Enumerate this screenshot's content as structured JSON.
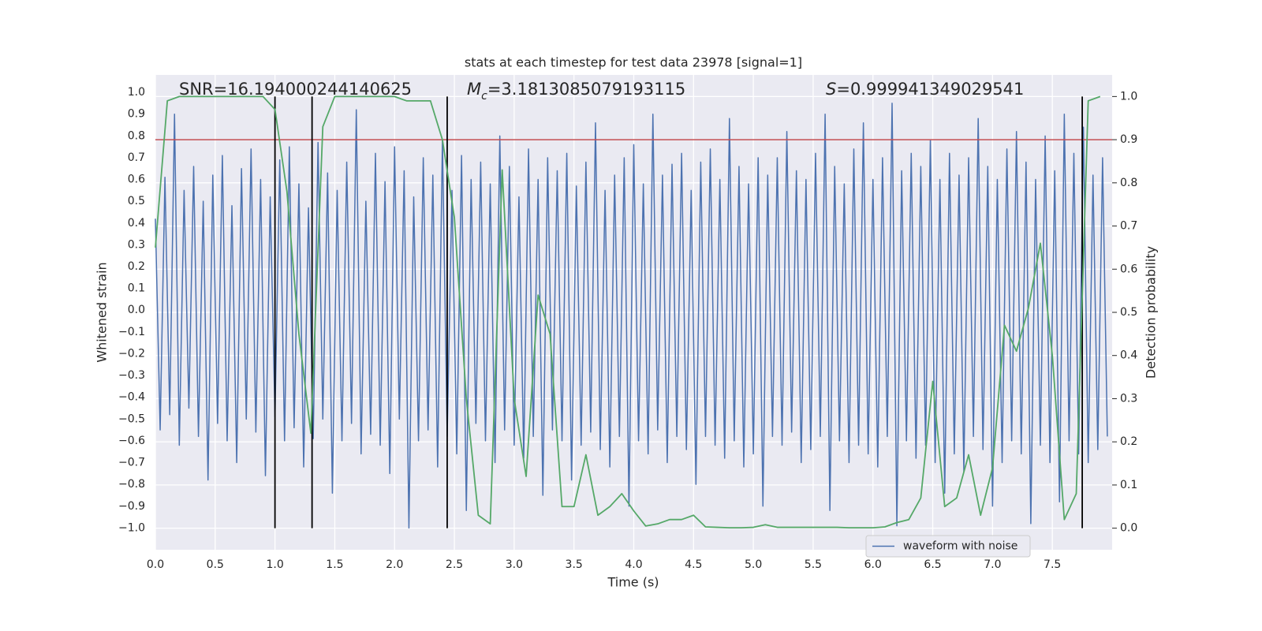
{
  "chart_data": {
    "type": "line",
    "title": "stats at each timestep for test data 23978 [signal=1]",
    "xlabel": "Time (s)",
    "ylabel": "Whitened strain",
    "y2label": "Detection probability",
    "annotations": [
      {
        "text": "SNR=16.194000244140625"
      },
      {
        "symbol": "M",
        "subscript": "c",
        "text": "=3.1813085079193115"
      },
      {
        "symbol": "S",
        "text": "=0.999941349029541"
      }
    ],
    "xlim": [
      0,
      8
    ],
    "ylim": [
      -1.1,
      1.08
    ],
    "y2lim": [
      -0.05,
      1.05
    ],
    "xticks": [
      {
        "value": 0,
        "label": "0.0"
      },
      0.5,
      {
        "value": 1,
        "label": "1.0"
      },
      1.5,
      {
        "value": 2,
        "label": "2.0"
      },
      2.5,
      {
        "value": 3,
        "label": "3.0"
      },
      3.5,
      {
        "value": 4,
        "label": "4.0"
      },
      4.5,
      {
        "value": 5,
        "label": "5.0"
      },
      5.5,
      {
        "value": 6,
        "label": "6.0"
      },
      6.5,
      {
        "value": 7,
        "label": "7.0"
      },
      7.5
    ],
    "yticks": [
      {
        "value": -1,
        "label": "−1.0"
      },
      {
        "value": -0.9,
        "label": "−0.9"
      },
      {
        "value": -0.8,
        "label": "−0.8"
      },
      {
        "value": -0.7,
        "label": "−0.7"
      },
      {
        "value": -0.6,
        "label": "−0.6"
      },
      {
        "value": -0.5,
        "label": "−0.5"
      },
      {
        "value": -0.4,
        "label": "−0.4"
      },
      {
        "value": -0.3,
        "label": "−0.3"
      },
      {
        "value": -0.2,
        "label": "−0.2"
      },
      {
        "value": -0.1,
        "label": "−0.1"
      },
      {
        "value": 0,
        "label": "0.0"
      },
      0.1,
      0.2,
      0.3,
      0.4,
      0.5,
      0.6,
      0.7,
      0.8,
      0.9,
      {
        "value": 1,
        "label": "1.0"
      }
    ],
    "y2ticks": [
      {
        "value": 0,
        "label": "0.0"
      },
      0.1,
      0.2,
      0.3,
      0.4,
      0.5,
      0.6,
      0.7,
      0.8,
      0.9,
      {
        "value": 1,
        "label": "1.0"
      }
    ],
    "grid": true,
    "legend_loc": "lower right",
    "threshold": {
      "value": 0.9,
      "axis": "y2",
      "color": "#c44e52"
    },
    "vlines": {
      "values": [
        1.0,
        1.31,
        2.44,
        7.75
      ],
      "color": "#000000"
    },
    "series": [
      {
        "name": "waveform with noise",
        "color": "#4c72b0",
        "x": [
          0,
          0.04,
          0.08,
          0.12,
          0.16,
          0.2,
          0.24,
          0.28,
          0.32,
          0.36,
          0.4,
          0.44,
          0.48,
          0.52,
          0.56,
          0.6,
          0.64,
          0.68,
          0.72,
          0.76,
          0.8,
          0.84,
          0.88,
          0.92,
          0.96,
          1,
          1.04,
          1.08,
          1.12,
          1.16,
          1.2,
          1.24,
          1.28,
          1.32,
          1.36,
          1.4,
          1.44,
          1.48,
          1.52,
          1.56,
          1.6,
          1.64,
          1.68,
          1.72,
          1.76,
          1.8,
          1.84,
          1.88,
          1.92,
          1.96,
          2,
          2.04,
          2.08,
          2.12,
          2.16,
          2.2,
          2.24,
          2.28,
          2.32,
          2.36,
          2.4,
          2.44,
          2.48,
          2.52,
          2.56,
          2.6,
          2.64,
          2.68,
          2.72,
          2.76,
          2.8,
          2.84,
          2.88,
          2.92,
          2.96,
          3,
          3.04,
          3.08,
          3.12,
          3.16,
          3.2,
          3.24,
          3.28,
          3.32,
          3.36,
          3.4,
          3.44,
          3.48,
          3.52,
          3.56,
          3.6,
          3.64,
          3.68,
          3.72,
          3.76,
          3.8,
          3.84,
          3.88,
          3.92,
          3.96,
          4,
          4.04,
          4.08,
          4.12,
          4.16,
          4.2,
          4.24,
          4.28,
          4.32,
          4.36,
          4.4,
          4.44,
          4.48,
          4.52,
          4.56,
          4.6,
          4.64,
          4.68,
          4.72,
          4.76,
          4.8,
          4.84,
          4.88,
          4.92,
          4.96,
          5,
          5.04,
          5.08,
          5.12,
          5.16,
          5.2,
          5.24,
          5.28,
          5.32,
          5.36,
          5.4,
          5.44,
          5.48,
          5.52,
          5.56,
          5.6,
          5.64,
          5.68,
          5.72,
          5.76,
          5.8,
          5.84,
          5.88,
          5.92,
          5.96,
          6,
          6.04,
          6.08,
          6.12,
          6.16,
          6.2,
          6.24,
          6.28,
          6.32,
          6.36,
          6.4,
          6.44,
          6.48,
          6.52,
          6.56,
          6.6,
          6.64,
          6.68,
          6.72,
          6.76,
          6.8,
          6.84,
          6.88,
          6.92,
          6.96,
          7,
          7.04,
          7.08,
          7.12,
          7.16,
          7.2,
          7.24,
          7.28,
          7.32,
          7.36,
          7.4,
          7.44,
          7.48,
          7.52,
          7.56,
          7.6,
          7.64,
          7.68,
          7.72,
          7.76,
          7.8,
          7.84,
          7.88,
          7.92,
          7.96
        ],
        "values": [
          0.42,
          -0.55,
          0.61,
          -0.48,
          0.9,
          -0.62,
          0.55,
          -0.45,
          0.66,
          -0.58,
          0.5,
          -0.78,
          0.62,
          -0.52,
          0.71,
          -0.6,
          0.48,
          -0.7,
          0.65,
          -0.5,
          0.74,
          -0.56,
          0.6,
          -0.76,
          0.52,
          -0.49,
          0.69,
          -0.6,
          0.75,
          -0.54,
          0.58,
          -0.72,
          0.47,
          -0.59,
          0.77,
          -0.5,
          0.63,
          -0.84,
          0.55,
          -0.6,
          0.68,
          -0.52,
          0.92,
          -0.66,
          0.5,
          -0.57,
          0.72,
          -0.62,
          0.59,
          -0.75,
          0.75,
          -0.5,
          0.64,
          -1.0,
          0.52,
          -0.6,
          0.7,
          -0.55,
          0.62,
          -0.72,
          0.78,
          -0.58,
          0.55,
          -0.66,
          0.71,
          -0.92,
          0.6,
          -0.52,
          0.68,
          -0.6,
          0.58,
          -0.7,
          0.8,
          -0.55,
          0.66,
          -0.62,
          0.52,
          -0.68,
          0.74,
          -0.58,
          0.6,
          -0.85,
          0.7,
          -0.55,
          0.64,
          -0.6,
          0.72,
          -0.78,
          0.57,
          -0.62,
          0.68,
          -0.56,
          0.86,
          -0.64,
          0.55,
          -0.72,
          0.62,
          -0.58,
          0.7,
          -0.9,
          0.76,
          -0.6,
          0.58,
          -0.66,
          0.9,
          -0.55,
          0.62,
          -0.7,
          0.67,
          -0.58,
          0.72,
          -0.64,
          0.55,
          -0.8,
          0.68,
          -0.58,
          0.74,
          -0.62,
          0.6,
          -0.68,
          0.88,
          -0.6,
          0.66,
          -0.72,
          0.58,
          -0.66,
          0.7,
          -0.9,
          0.62,
          -0.58,
          0.7,
          -0.62,
          0.82,
          -0.56,
          0.64,
          -0.7,
          0.6,
          -0.64,
          0.72,
          -0.58,
          0.9,
          -0.92,
          0.66,
          -0.6,
          0.58,
          -0.7,
          0.74,
          -0.62,
          0.86,
          -0.66,
          0.6,
          -0.72,
          0.7,
          -0.58,
          0.95,
          -0.99,
          0.64,
          -0.6,
          0.72,
          -0.68,
          0.66,
          -0.62,
          0.78,
          -0.7,
          0.6,
          -0.84,
          0.72,
          -0.66,
          0.62,
          -0.74,
          0.7,
          -0.58,
          0.88,
          -0.64,
          0.66,
          -0.9,
          0.6,
          -0.7,
          0.74,
          -0.6,
          0.82,
          -0.66,
          0.68,
          -0.98,
          0.6,
          -0.62,
          0.8,
          -0.7,
          0.64,
          -0.88,
          0.9,
          -0.6,
          0.72,
          -0.66,
          0.84,
          -0.7,
          0.62,
          -0.64,
          0.7,
          -0.58
        ]
      },
      {
        "color": "#55a868",
        "axis": "y2",
        "x": [
          0,
          0.1,
          0.2,
          0.3,
          0.4,
          0.5,
          0.6,
          0.7,
          0.8,
          0.9,
          1,
          1.1,
          1.2,
          1.3,
          1.4,
          1.5,
          1.6,
          1.7,
          1.8,
          1.9,
          2,
          2.1,
          2.2,
          2.3,
          2.4,
          2.5,
          2.6,
          2.7,
          2.8,
          2.9,
          3,
          3.1,
          3.2,
          3.3,
          3.4,
          3.5,
          3.6,
          3.7,
          3.8,
          3.9,
          4,
          4.1,
          4.2,
          4.3,
          4.4,
          4.5,
          4.6,
          4.7,
          4.8,
          4.9,
          5,
          5.1,
          5.2,
          5.3,
          5.4,
          5.5,
          5.6,
          5.7,
          5.8,
          5.9,
          6,
          6.1,
          6.2,
          6.3,
          6.4,
          6.5,
          6.6,
          6.7,
          6.8,
          6.9,
          7,
          7.1,
          7.2,
          7.3,
          7.4,
          7.5,
          7.6,
          7.7,
          7.8,
          7.9
        ],
        "values": [
          0.65,
          0.99,
          1.0,
          1.0,
          1.0,
          1.0,
          1.0,
          1.0,
          1.0,
          1.0,
          0.97,
          0.78,
          0.45,
          0.22,
          0.93,
          1.0,
          1.0,
          1.0,
          1.0,
          1.0,
          1.0,
          0.99,
          0.99,
          0.99,
          0.9,
          0.72,
          0.3,
          0.03,
          0.01,
          0.83,
          0.3,
          0.12,
          0.54,
          0.45,
          0.05,
          0.05,
          0.17,
          0.03,
          0.05,
          0.08,
          0.04,
          0.005,
          0.01,
          0.02,
          0.02,
          0.03,
          0.003,
          0.002,
          0.001,
          0.001,
          0.002,
          0.008,
          0.002,
          0.002,
          0.002,
          0.002,
          0.002,
          0.002,
          0.001,
          0.001,
          0.001,
          0.003,
          0.013,
          0.02,
          0.07,
          0.34,
          0.05,
          0.07,
          0.17,
          0.03,
          0.14,
          0.47,
          0.41,
          0.51,
          0.66,
          0.4,
          0.02,
          0.08,
          0.99,
          1.0
        ]
      }
    ]
  }
}
